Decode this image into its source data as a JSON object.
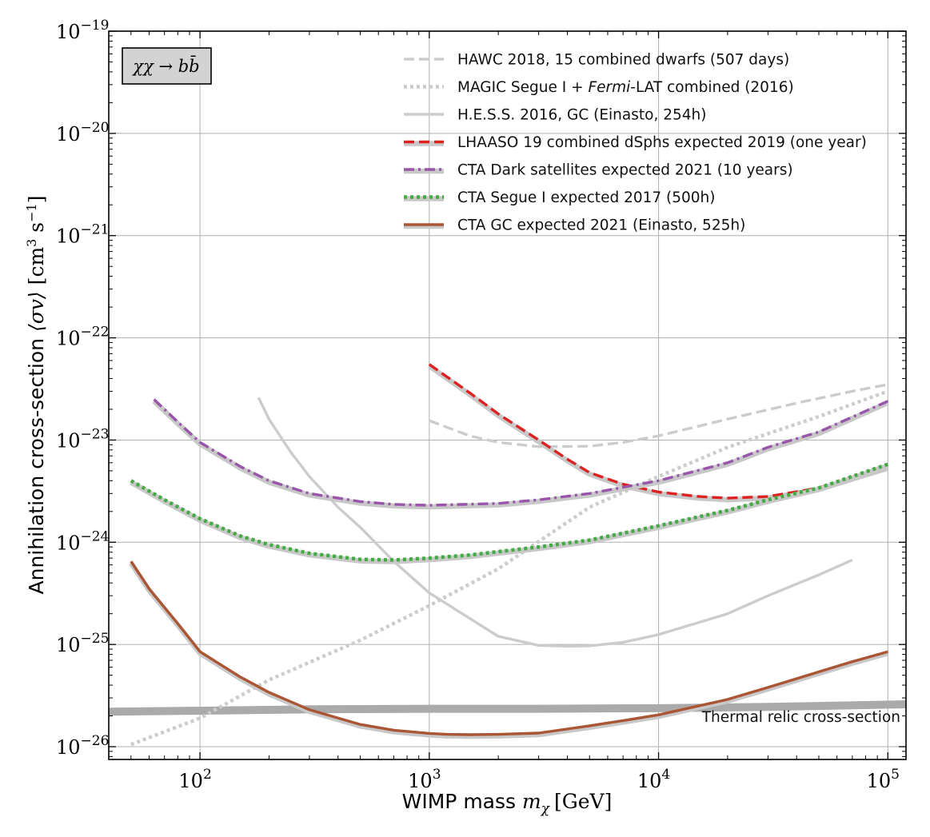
{
  "chart_data": {
    "type": "line",
    "xscale": "log",
    "yscale": "log",
    "xlim": [
      40,
      120000
    ],
    "ylim": [
      7.5e-27,
      1e-19
    ],
    "xlabel_prefix": "WIMP mass ",
    "xlabel_symbol": "m",
    "xlabel_subscript": "χ",
    "xlabel_unit": "[GeV]",
    "ylabel_prefix": "Annihilation cross-section ",
    "ylabel_symbol": "⟨σv⟩",
    "ylabel_unit_open": "[cm",
    "ylabel_unit_exp1": "3",
    "ylabel_unit_mid": " s",
    "ylabel_unit_exp2": "−1",
    "ylabel_unit_close": "]",
    "xticks": [
      {
        "value": 100,
        "base": "10",
        "exp": "2"
      },
      {
        "value": 1000,
        "base": "10",
        "exp": "3"
      },
      {
        "value": 10000,
        "base": "10",
        "exp": "4"
      },
      {
        "value": 100000,
        "base": "10",
        "exp": "5"
      }
    ],
    "yticks": [
      {
        "value": 1e-26,
        "base": "10",
        "exp": "−26"
      },
      {
        "value": 1e-25,
        "base": "10",
        "exp": "−25"
      },
      {
        "value": 1e-24,
        "base": "10",
        "exp": "−24"
      },
      {
        "value": 1e-23,
        "base": "10",
        "exp": "−23"
      },
      {
        "value": 1e-22,
        "base": "10",
        "exp": "−22"
      },
      {
        "value": 1e-21,
        "base": "10",
        "exp": "−21"
      },
      {
        "value": 1e-20,
        "base": "10",
        "exp": "−20"
      },
      {
        "value": 1e-19,
        "base": "10",
        "exp": "−19"
      }
    ],
    "grid": true,
    "legend_location": "top-right",
    "channel_box": {
      "label": "χχ → bb̄",
      "location": "top-left"
    },
    "annotations": [
      {
        "text": "Thermal relic cross-section",
        "x": 9800,
        "y": 1.3e-26
      }
    ],
    "series": [
      {
        "name": "HAWC 2018, 15 combined dwarfs (507 days)",
        "color": "#cccccc",
        "style": "dashed",
        "shadow": false,
        "x": [
          1000,
          1500,
          2000,
          3000,
          5000,
          7000,
          10000,
          20000,
          40000,
          70000,
          100000
        ],
        "y": [
          1.55e-23,
          1.1e-23,
          9.5e-24,
          8.6e-24,
          8.7e-24,
          9.5e-24,
          1.1e-23,
          1.6e-23,
          2.3e-23,
          3e-23,
          3.5e-23
        ]
      },
      {
        "name": "MAGIC Segue I + Fermi-LAT combined (2016)",
        "name_before": "MAGIC Segue I + ",
        "name_italic": "Fermi",
        "name_after": "-LAT combined (2016)",
        "color": "#cccccc",
        "style": "dotted",
        "shadow": false,
        "x": [
          50,
          100,
          200,
          500,
          1000,
          2000,
          5000,
          10000,
          20000,
          50000,
          100000
        ],
        "y": [
          1.05e-26,
          1.9e-26,
          4.5e-26,
          1.1e-25,
          2.4e-25,
          5.5e-25,
          2.2e-24,
          4.4e-24,
          8.5e-24,
          1.7e-23,
          3e-23
        ]
      },
      {
        "name": "H.E.S.S. 2016, GC (Einasto, 254h)",
        "color": "#cccccc",
        "style": "solid",
        "shadow": false,
        "x": [
          180,
          200,
          250,
          300,
          400,
          500,
          700,
          1000,
          1500,
          2000,
          3000,
          4000,
          5000,
          7000,
          10000,
          20000,
          30000,
          50000,
          70000
        ],
        "y": [
          2.6e-23,
          1.6e-23,
          7.5e-24,
          4.4e-24,
          2.2e-24,
          1.4e-24,
          6.5e-25,
          3.2e-25,
          1.8e-25,
          1.2e-25,
          9.8e-26,
          9.6e-26,
          9.7e-26,
          1.05e-25,
          1.25e-25,
          2e-25,
          3e-25,
          4.8e-25,
          6.7e-25
        ]
      },
      {
        "name": "LHAASO 19 combined dSphs expected 2019 (one year)",
        "color": "#dd2222",
        "style": "dashed",
        "shadow": true,
        "x": [
          1000,
          1500,
          2000,
          3000,
          4000,
          5000,
          7000,
          10000,
          15000,
          20000,
          30000,
          50000,
          70000,
          100000
        ],
        "y": [
          5.5e-23,
          2.9e-23,
          1.8e-23,
          1e-23,
          6.5e-24,
          4.8e-24,
          3.7e-24,
          3.1e-24,
          2.8e-24,
          2.7e-24,
          2.8e-24,
          3.4e-24,
          4.3e-24,
          5.5e-24
        ]
      },
      {
        "name": "CTA Dark satellites expected 2021 (10 years)",
        "color": "#9955aa",
        "style": "dashdot",
        "shadow": true,
        "x": [
          63,
          80,
          100,
          150,
          200,
          300,
          500,
          700,
          1000,
          2000,
          3000,
          5000,
          10000,
          20000,
          30000,
          50000,
          100000
        ],
        "y": [
          2.5e-23,
          1.5e-23,
          9.5e-24,
          5.5e-24,
          4e-24,
          3e-24,
          2.5e-24,
          2.35e-24,
          2.3e-24,
          2.4e-24,
          2.6e-24,
          3e-24,
          4e-24,
          6e-24,
          8.5e-24,
          1.2e-23,
          2.4e-23
        ]
      },
      {
        "name": "CTA Segue I expected 2017 (500h)",
        "color": "#44aa44",
        "style": "dotted",
        "shadow": true,
        "x": [
          50,
          70,
          100,
          150,
          200,
          300,
          500,
          700,
          1000,
          1500,
          2000,
          3000,
          5000,
          10000,
          20000,
          30000,
          50000,
          100000
        ],
        "y": [
          4e-24,
          2.6e-24,
          1.7e-24,
          1.15e-24,
          9.5e-25,
          7.8e-25,
          6.8e-25,
          6.7e-25,
          7e-25,
          7.5e-25,
          8.1e-25,
          9e-25,
          1.05e-24,
          1.45e-24,
          2.05e-24,
          2.6e-24,
          3.4e-24,
          5.8e-24
        ]
      },
      {
        "name": "CTA GC expected 2021 (Einasto, 525h)",
        "color": "#aa5533",
        "style": "solid",
        "shadow": true,
        "x": [
          50,
          60,
          80,
          100,
          150,
          200,
          300,
          500,
          700,
          1000,
          1200,
          1500,
          2000,
          3000,
          5000,
          7000,
          10000,
          20000,
          30000,
          50000,
          70000,
          100000
        ],
        "y": [
          6.5e-25,
          3.5e-25,
          1.6e-25,
          8.5e-26,
          4.8e-26,
          3.4e-26,
          2.3e-26,
          1.65e-26,
          1.45e-26,
          1.35e-26,
          1.32e-26,
          1.31e-26,
          1.32e-26,
          1.36e-26,
          1.6e-26,
          1.8e-26,
          2.05e-26,
          2.9e-26,
          3.8e-26,
          5.4e-26,
          6.8e-26,
          8.5e-26
        ]
      },
      {
        "name": "Thermal relic cross-section",
        "color": "#aaaaaa",
        "style": "band",
        "shadow": false,
        "in_legend": false,
        "x": [
          40,
          100,
          300,
          1000,
          3000,
          10000,
          30000,
          120000
        ],
        "y": [
          2.2e-26,
          2.25e-26,
          2.32e-26,
          2.35e-26,
          2.35e-26,
          2.38e-26,
          2.45e-26,
          2.6e-26
        ]
      }
    ]
  }
}
